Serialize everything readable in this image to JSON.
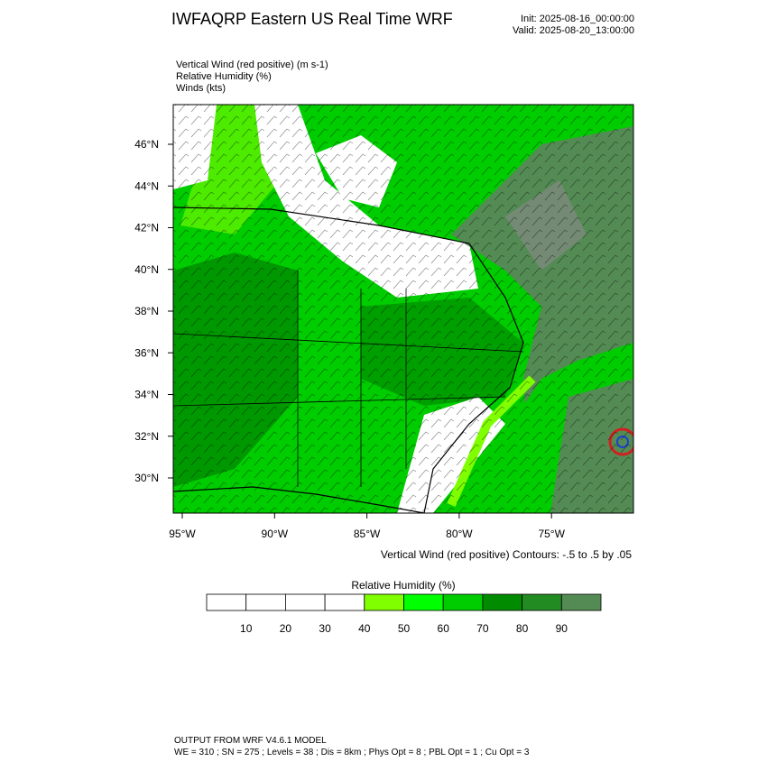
{
  "header": {
    "title": "IWFAQRP Eastern US Real Time WRF",
    "init": "Init: 2025-08-16_00:00:00",
    "valid": "Valid: 2025-08-20_13:00:00"
  },
  "fields": [
    "Vertical Wind (red positive)   (m s-1)",
    "Relative Humidity   (%)",
    "Winds   (kts)"
  ],
  "map": {
    "lat_labels": [
      "46°N",
      "44°N",
      "42°N",
      "40°N",
      "38°N",
      "36°N",
      "34°N",
      "32°N",
      "30°N"
    ],
    "lon_labels": [
      "95°W",
      "90°W",
      "85°W",
      "80°W",
      "75°W"
    ],
    "contour_note": "Vertical Wind (red positive) Contours: -.5 to .5 by .05"
  },
  "colorbar": {
    "title": "Relative Humidity   (%)",
    "colors": [
      "#ffffff",
      "#ffffff",
      "#ffffff",
      "#ffffff",
      "#7fff00",
      "#00ff00",
      "#00cd00",
      "#008b00",
      "#228b22",
      "#548b54"
    ],
    "labels": [
      "10",
      "20",
      "30",
      "40",
      "50",
      "60",
      "70",
      "80",
      "90"
    ]
  },
  "footer": [
    "OUTPUT FROM WRF V4.6.1 MODEL",
    "WE = 310 ; SN = 275 ; Levels = 38 ; Dis = 8km ; Phys Opt = 8 ; PBL Opt = 1 ; Cu Opt = 3"
  ]
}
